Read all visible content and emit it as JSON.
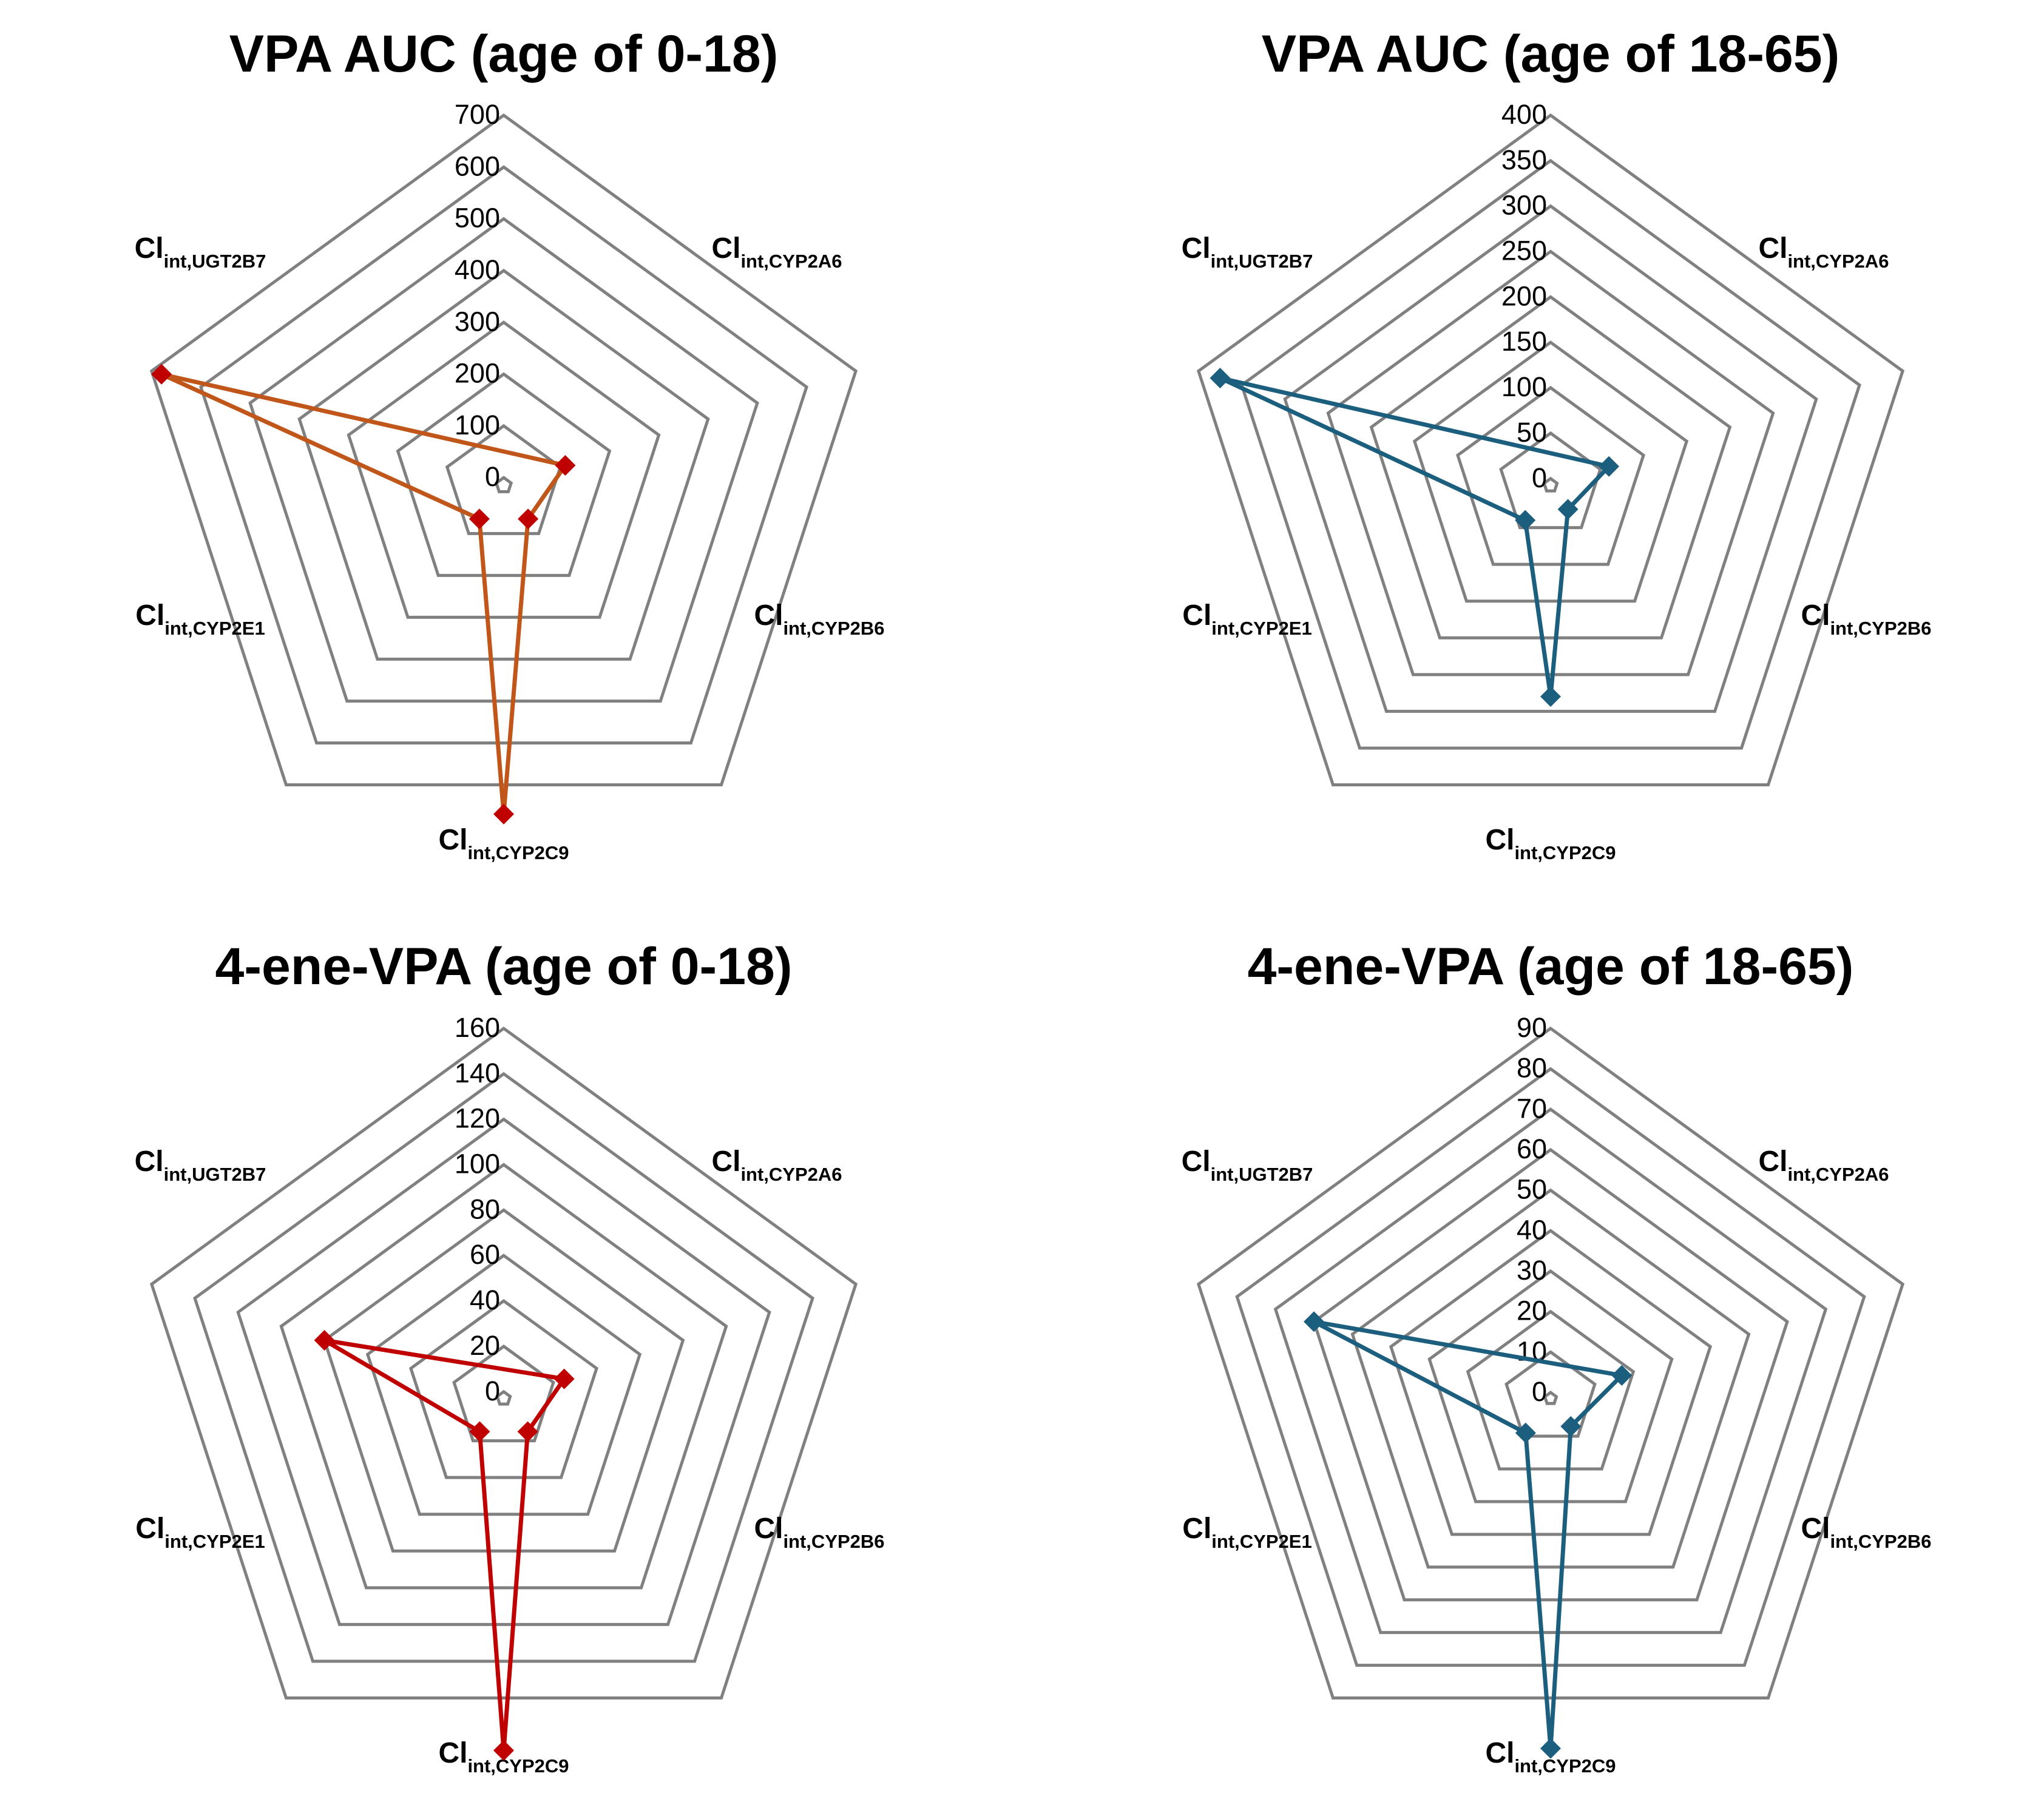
{
  "chart_data": [
    {
      "type": "radar",
      "title": "VPA AUC (age of 0-18)",
      "axes": [
        {
          "main": "Cl",
          "sub": "int,UGT2B7"
        },
        {
          "main": "Cl",
          "sub": "int,CYP2A6"
        },
        {
          "main": "Cl",
          "sub": "int,CYP2B6"
        },
        {
          "main": "Cl",
          "sub": "int,CYP2C9"
        },
        {
          "main": "Cl",
          "sub": "int,CYP2E1"
        }
      ],
      "ticks": [
        "0",
        "100",
        "200",
        "300",
        "400",
        "500",
        "600",
        "700"
      ],
      "range": [
        0,
        700
      ],
      "series": [
        {
          "color": "#c0561a",
          "marker_color": "#c00000",
          "values": {
            "int,UGT2B7": 680,
            "int,CYP2A6": 110,
            "int,CYP2B6": 65,
            "int,CYP2C9": 620,
            "int,CYP2E1": 65
          }
        }
      ]
    },
    {
      "type": "radar",
      "title": "VPA AUC (age of 18-65)",
      "axes": [
        {
          "main": "Cl",
          "sub": "int,UGT2B7"
        },
        {
          "main": "Cl",
          "sub": "int,CYP2A6"
        },
        {
          "main": "Cl",
          "sub": "int,CYP2B6"
        },
        {
          "main": "Cl",
          "sub": "int,CYP2C9"
        },
        {
          "main": "Cl",
          "sub": "int,CYP2E1"
        }
      ],
      "ticks": [
        "0",
        "50",
        "100",
        "150",
        "200",
        "250",
        "300",
        "350",
        "400"
      ],
      "range": [
        0,
        400
      ],
      "series": [
        {
          "color": "#1b5e7e",
          "marker_color": "#1b5e7e",
          "values": {
            "int,UGT2B7": 375,
            "int,CYP2A6": 60,
            "int,CYP2B6": 25,
            "int,CYP2C9": 225,
            "int,CYP2E1": 40
          }
        }
      ]
    },
    {
      "type": "radar",
      "title": "4-ene-VPA (age of 0-18)",
      "axes": [
        {
          "main": "Cl",
          "sub": "int,UGT2B7"
        },
        {
          "main": "Cl",
          "sub": "int,CYP2A6"
        },
        {
          "main": "Cl",
          "sub": "int,CYP2B6"
        },
        {
          "main": "Cl",
          "sub": "int,CYP2C9"
        },
        {
          "main": "Cl",
          "sub": "int,CYP2E1"
        }
      ],
      "ticks": [
        "0",
        "20",
        "40",
        "60",
        "80",
        "100",
        "120",
        "140",
        "160"
      ],
      "range": [
        0,
        160
      ],
      "series": [
        {
          "color": "#c00000",
          "marker_color": "#c00000",
          "values": {
            "int,UGT2B7": 80,
            "int,CYP2A6": 25,
            "int,CYP2B6": 15,
            "int,CYP2C9": 152,
            "int,CYP2E1": 15
          }
        }
      ]
    },
    {
      "type": "radar",
      "title": "4-ene-VPA (age of 18-65)",
      "axes": [
        {
          "main": "Cl",
          "sub": "int,UGT2B7"
        },
        {
          "main": "Cl",
          "sub": "int,CYP2A6"
        },
        {
          "main": "Cl",
          "sub": "int,CYP2B6"
        },
        {
          "main": "Cl",
          "sub": "int,CYP2C9"
        },
        {
          "main": "Cl",
          "sub": "int,CYP2E1"
        }
      ],
      "ticks": [
        "0",
        "10",
        "20",
        "30",
        "40",
        "50",
        "60",
        "70",
        "80",
        "90"
      ],
      "range": [
        0,
        90
      ],
      "series": [
        {
          "color": "#1b5e7e",
          "marker_color": "#1b5e7e",
          "values": {
            "int,UGT2B7": 60,
            "int,CYP2A6": 17,
            "int,CYP2B6": 7,
            "int,CYP2C9": 85,
            "int,CYP2E1": 9
          }
        }
      ]
    }
  ]
}
